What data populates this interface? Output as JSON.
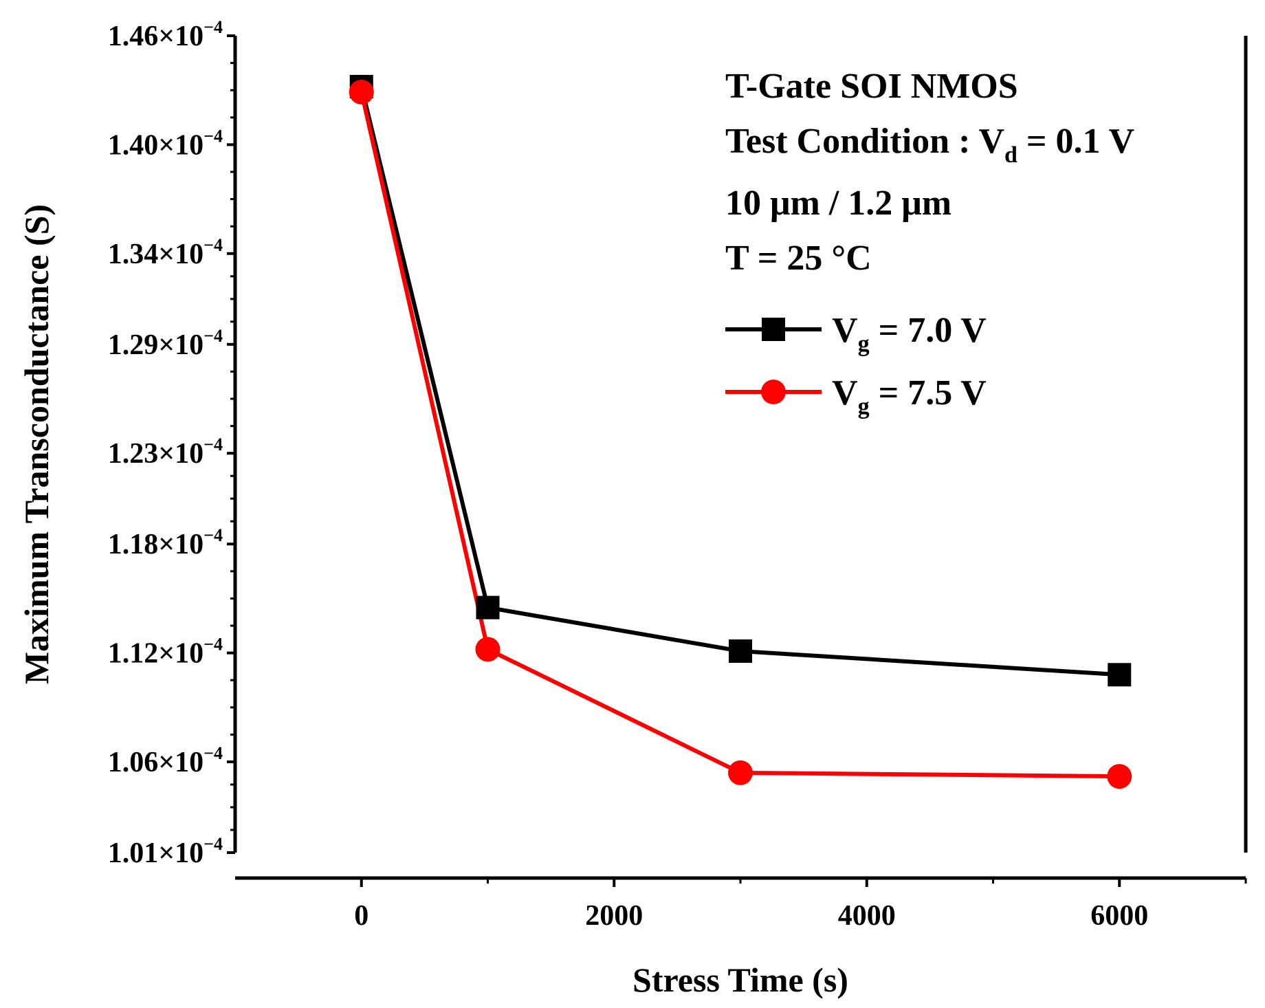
{
  "chart_data": {
    "type": "line",
    "xlabel": "Stress Time (s)",
    "ylabel": "Maximum Transconductance (S)",
    "xlim": [
      -1000,
      7000
    ],
    "ylim": [
      0.000101,
      0.000146
    ],
    "x_ticks": [
      0,
      2000,
      4000,
      6000
    ],
    "x_tick_labels": [
      "0",
      "2000",
      "4000",
      "6000"
    ],
    "y_ticks": [
      0.000101,
      0.000106,
      0.000112,
      0.000118,
      0.000123,
      0.000129,
      0.000134,
      0.00014,
      0.000146
    ],
    "y_tick_mantissas": [
      "1.01×10",
      "1.06×10",
      "1.12×10",
      "1.18×10",
      "1.23×10",
      "1.29×10",
      "1.34×10",
      "1.40×10",
      "1.46×10"
    ],
    "y_tick_exponent": "−4",
    "annotations": [
      {
        "text": "T-Gate SOI NMOS"
      },
      {
        "text": "Test Condition : V",
        "sub": "d",
        "tail": " = 0.1 V"
      },
      {
        "text": "10 μm / 1.2 μm"
      },
      {
        "text": "T = 25 °C"
      }
    ],
    "series": [
      {
        "name": "V",
        "name_sub": "g",
        "name_tail": " = 7.0 V",
        "marker": "square",
        "color": "#000000",
        "x": [
          0,
          1000,
          3000,
          6000
        ],
        "y": [
          0.0001432,
          0.0001145,
          0.0001121,
          0.0001108
        ]
      },
      {
        "name": "V",
        "name_sub": "g",
        "name_tail": " = 7.5 V",
        "marker": "circle",
        "color": "#ff0000",
        "x": [
          0,
          1000,
          3000,
          6000
        ],
        "y": [
          0.0001429,
          0.0001122,
          0.0001054,
          0.0001052
        ]
      }
    ]
  }
}
